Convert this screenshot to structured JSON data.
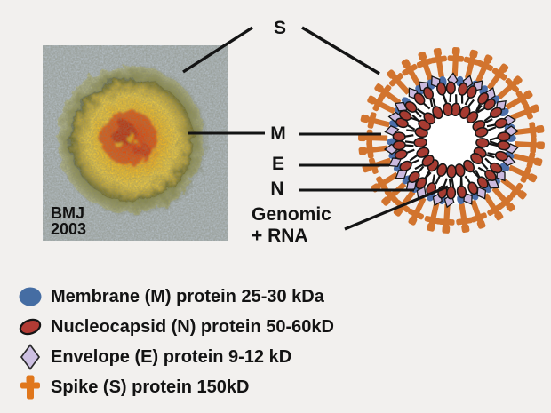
{
  "page": {
    "background": "#f2f0ee"
  },
  "em_image": {
    "credit_line1": "BMJ",
    "credit_line2": "2003",
    "description": "electron-micrograph-of-coronavirus"
  },
  "labels": {
    "s": "S",
    "m": "M",
    "e": "E",
    "n": "N",
    "genomic_line1": "Genomic",
    "genomic_line2": "+ RNA"
  },
  "legend": {
    "items": [
      {
        "icon": "membrane-ellipse-icon",
        "color": "#456DA3",
        "label": "Membrane (M) protein 25-30 kDa"
      },
      {
        "icon": "nucleocapsid-ellipse-icon",
        "color": "#B23B34",
        "label": "Nucleocapsid (N) protein 50-60kD"
      },
      {
        "icon": "envelope-diamond-icon",
        "color": "#CDC0E2",
        "label": "Envelope (E) protein 9-12 kD"
      },
      {
        "icon": "spike-cross-icon",
        "color": "#E0771C",
        "label": "Spike (S) protein 150kD"
      }
    ]
  },
  "diagram": {
    "colors": {
      "spike": "#D2742E",
      "envelope": "#CBBADF",
      "membrane": "#4B6EA9",
      "nucleocapsid": "#A63B31",
      "outline": "#151515",
      "lumen": "#FFFFFF"
    }
  }
}
